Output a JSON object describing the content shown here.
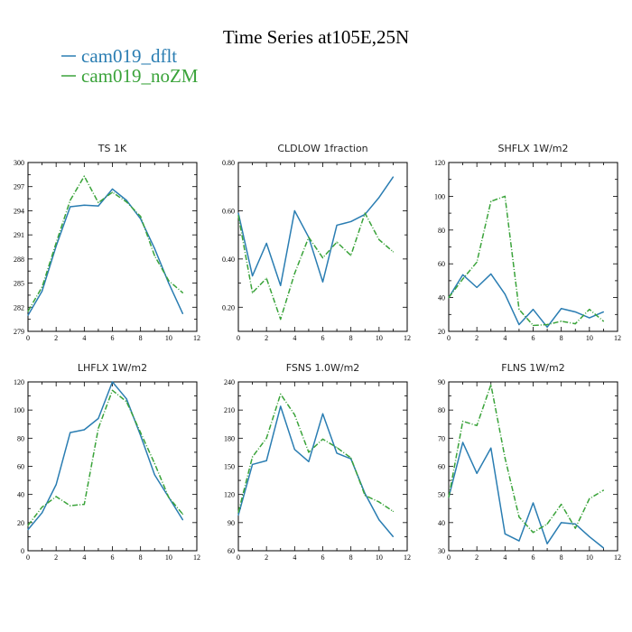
{
  "figure": {
    "title": "Time Series at105E,25N",
    "colors": {
      "dflt": "#2a7db2",
      "noZM": "#3aa33a"
    }
  },
  "legend": [
    {
      "label": "cam019_dflt",
      "color": "#2a7db2",
      "dash": "solid"
    },
    {
      "label": "cam019_noZM",
      "color": "#3aa33a",
      "dash": "dashed"
    }
  ],
  "chart_data": [
    {
      "type": "line",
      "title": "TS   1K",
      "xlim": [
        0,
        12
      ],
      "xticks": [
        0,
        2,
        4,
        6,
        8,
        10,
        12
      ],
      "ylim": [
        279,
        300
      ],
      "yticks": [
        279,
        282,
        285,
        288,
        291,
        294,
        297,
        300
      ],
      "ytick_labels": [
        "279",
        "282",
        "285",
        "288",
        "291",
        "294",
        "297",
        "300"
      ],
      "x": [
        0,
        1,
        2,
        3,
        4,
        5,
        6,
        7,
        8,
        9,
        10,
        11
      ],
      "series": [
        {
          "name": "cam019_dflt",
          "values": [
            281.0,
            284.0,
            289.6,
            294.5,
            294.7,
            294.6,
            296.7,
            295.3,
            293.0,
            289.3,
            285.0,
            281.2
          ]
        },
        {
          "name": "cam019_noZM",
          "values": [
            281.5,
            284.5,
            290.0,
            295.3,
            298.3,
            295.0,
            296.3,
            295.1,
            293.3,
            288.4,
            285.3,
            283.8
          ]
        }
      ]
    },
    {
      "type": "line",
      "title": "CLDLOW   1fraction",
      "xlim": [
        0,
        12
      ],
      "xticks": [
        0,
        2,
        4,
        6,
        8,
        10,
        12
      ],
      "ylim": [
        0.1,
        0.8
      ],
      "yticks": [
        0.2,
        0.4,
        0.6,
        0.8
      ],
      "ytick_labels": [
        "0.20",
        "0.40",
        "0.60",
        "0.80"
      ],
      "x": [
        0,
        1,
        2,
        3,
        4,
        5,
        6,
        7,
        8,
        9,
        10,
        11
      ],
      "series": [
        {
          "name": "cam019_dflt",
          "values": [
            0.59,
            0.33,
            0.465,
            0.29,
            0.6,
            0.49,
            0.305,
            0.54,
            0.555,
            0.585,
            0.655,
            0.74
          ]
        },
        {
          "name": "cam019_noZM",
          "values": [
            0.58,
            0.26,
            0.32,
            0.15,
            0.34,
            0.49,
            0.405,
            0.47,
            0.415,
            0.59,
            0.48,
            0.43
          ]
        }
      ]
    },
    {
      "type": "line",
      "title": "SHFLX   1W/m2",
      "xlim": [
        0,
        12
      ],
      "xticks": [
        0,
        2,
        4,
        6,
        8,
        10,
        12
      ],
      "ylim": [
        20,
        120
      ],
      "yticks": [
        20,
        40,
        60,
        80,
        100,
        120
      ],
      "ytick_labels": [
        "20",
        "40",
        "60",
        "80",
        "100",
        "120"
      ],
      "x": [
        0,
        1,
        2,
        3,
        4,
        5,
        6,
        7,
        8,
        9,
        10,
        11
      ],
      "series": [
        {
          "name": "cam019_dflt",
          "values": [
            40,
            53.5,
            46,
            54,
            42,
            24,
            33,
            22.5,
            33.5,
            31.5,
            28,
            31.5
          ]
        },
        {
          "name": "cam019_noZM",
          "values": [
            40,
            51,
            61,
            97,
            100,
            33,
            23.5,
            24,
            26,
            24.5,
            33,
            26
          ]
        }
      ]
    },
    {
      "type": "line",
      "title": "LHFLX   1W/m2",
      "xlim": [
        0,
        12
      ],
      "xticks": [
        0,
        2,
        4,
        6,
        8,
        10,
        12
      ],
      "ylim": [
        0,
        120
      ],
      "yticks": [
        0,
        20,
        40,
        60,
        80,
        100,
        120
      ],
      "ytick_labels": [
        "0",
        "20",
        "40",
        "60",
        "80",
        "100",
        "120"
      ],
      "x": [
        0,
        1,
        2,
        3,
        4,
        5,
        6,
        7,
        8,
        9,
        10,
        11
      ],
      "series": [
        {
          "name": "cam019_dflt",
          "values": [
            15,
            27,
            47,
            84,
            86,
            94,
            120,
            108,
            82,
            54,
            38,
            22
          ]
        },
        {
          "name": "cam019_noZM",
          "values": [
            18,
            31,
            38.5,
            32,
            33,
            87,
            114,
            106,
            84,
            62,
            38,
            26
          ]
        }
      ]
    },
    {
      "type": "line",
      "title": "FSNS   1.0W/m2",
      "xlim": [
        0,
        12
      ],
      "xticks": [
        0,
        2,
        4,
        6,
        8,
        10,
        12
      ],
      "ylim": [
        60,
        240
      ],
      "yticks": [
        60,
        90,
        120,
        150,
        180,
        210,
        240
      ],
      "ytick_labels": [
        "60",
        "90",
        "120",
        "150",
        "180",
        "210",
        "240"
      ],
      "x": [
        0,
        1,
        2,
        3,
        4,
        5,
        6,
        7,
        8,
        9,
        10,
        11
      ],
      "series": [
        {
          "name": "cam019_dflt",
          "values": [
            98,
            152,
            156,
            214,
            168,
            155,
            206,
            164,
            158,
            121,
            93,
            75
          ]
        },
        {
          "name": "cam019_noZM",
          "values": [
            101,
            160,
            180,
            227,
            205,
            165,
            179,
            170,
            159,
            119,
            112,
            102
          ]
        }
      ]
    },
    {
      "type": "line",
      "title": "FLNS   1W/m2",
      "xlim": [
        0,
        12
      ],
      "xticks": [
        0,
        2,
        4,
        6,
        8,
        10,
        12
      ],
      "ylim": [
        30,
        90
      ],
      "yticks": [
        30,
        40,
        50,
        60,
        70,
        80,
        90
      ],
      "ytick_labels": [
        "30",
        "40",
        "50",
        "60",
        "70",
        "80",
        "90"
      ],
      "x": [
        0,
        1,
        2,
        3,
        4,
        5,
        6,
        7,
        8,
        9,
        10,
        11
      ],
      "series": [
        {
          "name": "cam019_dflt",
          "values": [
            49,
            68.5,
            57.5,
            66.5,
            36,
            33.5,
            47,
            32.5,
            40,
            39.5,
            35,
            31
          ]
        },
        {
          "name": "cam019_noZM",
          "values": [
            49,
            76,
            74.5,
            89,
            63,
            42,
            36.5,
            39.5,
            46.5,
            38,
            48.5,
            51.5
          ]
        }
      ]
    }
  ]
}
